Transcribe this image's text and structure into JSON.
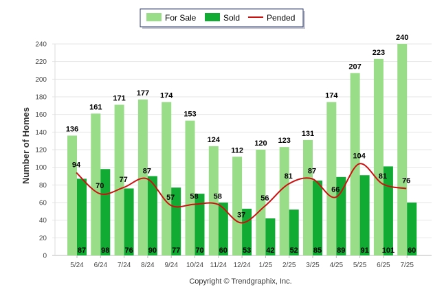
{
  "chart_data": {
    "type": "bar",
    "title": "",
    "xlabel": "",
    "ylabel": "Number of Homes",
    "ylim": [
      0,
      240
    ],
    "yticks": [
      "0",
      "20",
      "40",
      "60",
      "80",
      "100",
      "120",
      "140",
      "160",
      "180",
      "200",
      "220",
      "240"
    ],
    "categories": [
      "5/24",
      "6/24",
      "7/24",
      "8/24",
      "9/24",
      "10/24",
      "11/24",
      "12/24",
      "1/25",
      "2/25",
      "3/25",
      "4/25",
      "5/25",
      "6/25",
      "7/25"
    ],
    "series": [
      {
        "name": "For Sale",
        "type": "bar",
        "color": "#99dd88",
        "values": [
          136,
          161,
          171,
          177,
          174,
          153,
          124,
          112,
          120,
          123,
          131,
          174,
          207,
          223,
          240
        ]
      },
      {
        "name": "Sold",
        "type": "bar",
        "color": "#11aa33",
        "values": [
          87,
          98,
          76,
          90,
          77,
          70,
          60,
          53,
          42,
          52,
          85,
          89,
          91,
          101,
          60
        ]
      },
      {
        "name": "Pended",
        "type": "line",
        "color": "#cc1111",
        "values": [
          94,
          70,
          77,
          87,
          57,
          58,
          58,
          37,
          56,
          81,
          87,
          66,
          104,
          81,
          76
        ]
      }
    ],
    "legend": "top-center",
    "grid": true,
    "footer": "Copyright © Trendgraphix, Inc."
  }
}
